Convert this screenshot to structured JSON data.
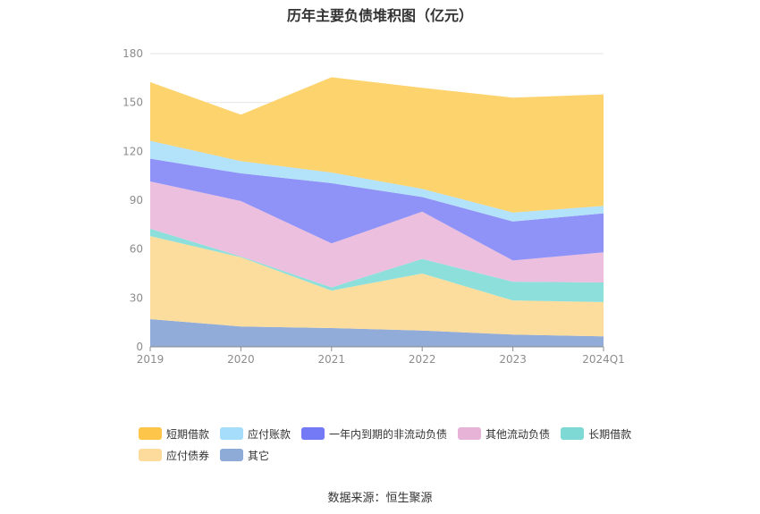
{
  "chart_data": {
    "type": "area",
    "stacked": true,
    "title": "历年主要负债堆积图（亿元）",
    "categories": [
      "2019",
      "2020",
      "2021",
      "2022",
      "2023",
      "2024Q1"
    ],
    "ylim": [
      0,
      180
    ],
    "yticks": [
      0,
      30,
      60,
      90,
      120,
      150,
      180
    ],
    "grid": true,
    "legend_position": "bottom",
    "series": [
      {
        "name": "其它",
        "color": "#91acd8",
        "values": [
          17,
          12.5,
          11.5,
          10,
          7.5,
          6.5
        ]
      },
      {
        "name": "应付债券",
        "color": "#fddd9d",
        "values": [
          51,
          42.5,
          23,
          35,
          21,
          21
        ]
      },
      {
        "name": "长期借款",
        "color": "#8ddfdb",
        "values": [
          4.5,
          0.5,
          2,
          9,
          11.5,
          12
        ]
      },
      {
        "name": "其他流动负债",
        "color": "#ecbfde",
        "values": [
          29,
          34,
          27,
          29,
          13,
          18.5
        ]
      },
      {
        "name": "一年内到期的非流动负债",
        "color": "#8f93f7",
        "values": [
          14,
          17,
          37,
          9,
          24,
          24
        ]
      },
      {
        "name": "应付账款",
        "color": "#b3e2fb",
        "values": [
          11,
          7.5,
          6.5,
          5,
          5.5,
          4.5
        ]
      },
      {
        "name": "短期借款",
        "color": "#fcd36c",
        "values": [
          36,
          28.5,
          58.5,
          62,
          70.5,
          68.5
        ]
      }
    ]
  },
  "legend_order": [
    0,
    1,
    2,
    3,
    4,
    5,
    6
  ],
  "legend_items": [
    {
      "label": "短期借款",
      "color": "#fdc64a"
    },
    {
      "label": "应付账款",
      "color": "#a5ddfb"
    },
    {
      "label": "一年内到期的非流动负债",
      "color": "#7479f5"
    },
    {
      "label": "其他流动负债",
      "color": "#e7b4d8"
    },
    {
      "label": "长期借款",
      "color": "#7ed8d4"
    },
    {
      "label": "应付债券",
      "color": "#fddb9c"
    },
    {
      "label": "其它",
      "color": "#8eaad6"
    }
  ],
  "source": "数据来源：恒生聚源"
}
